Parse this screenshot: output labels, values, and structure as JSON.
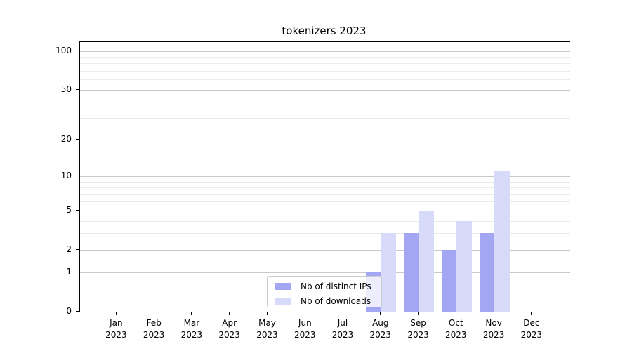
{
  "chart_data": {
    "type": "bar",
    "title": "tokenizers 2023",
    "categories": [
      "Jan 2023",
      "Feb 2023",
      "Mar 2023",
      "Apr 2023",
      "May 2023",
      "Jun 2023",
      "Jul 2023",
      "Aug 2023",
      "Sep 2023",
      "Oct 2023",
      "Nov 2023",
      "Dec 2023"
    ],
    "series": [
      {
        "name": "Nb of distinct IPs",
        "color": "#a3a6f2",
        "values": [
          0,
          0,
          0,
          0,
          0,
          0,
          0,
          1,
          3,
          2,
          3,
          0
        ]
      },
      {
        "name": "Nb of downloads",
        "color": "#d8daf9",
        "values": [
          0,
          0,
          0,
          0,
          0,
          0,
          0,
          3,
          5,
          4,
          11,
          0
        ]
      }
    ],
    "xlabel": "",
    "ylabel": "",
    "yscale": "log1p",
    "ylim": [
      0,
      117
    ],
    "y_major_ticks": [
      0,
      1,
      2,
      5,
      10,
      20,
      50,
      100
    ],
    "y_minor_gridlines": [
      3,
      4,
      6,
      7,
      8,
      9,
      30,
      40,
      60,
      70,
      80,
      90
    ],
    "grid": "both",
    "legend_position": "lower center"
  },
  "colors": {
    "bar_distinct_ips": "#a3a6f2",
    "bar_downloads": "#d8daf9",
    "grid_major": "#c9c9c9",
    "grid_minor": "#ebebeb",
    "spine": "#000000",
    "text": "#000000",
    "background": "#ffffff",
    "legend_border": "#cccccc"
  }
}
